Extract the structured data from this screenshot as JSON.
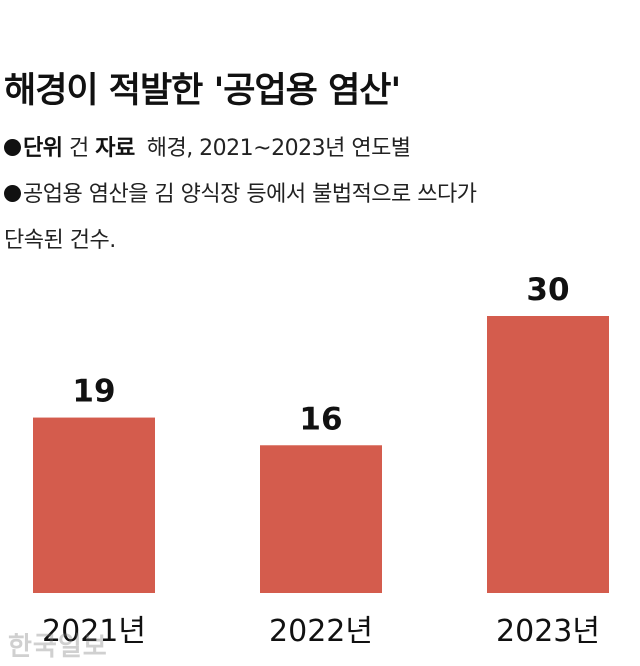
{
  "header": {
    "title": "해경이 적발한 '공업용 염산'",
    "unit_label": "단위",
    "unit_value": "건",
    "source_label": "자료",
    "source_value": "해경, 2021~2023년 연도별",
    "description_line1": "공업용 염산을 김 양식장 등에서 불법적으로 쓰다가",
    "description_line2": "단속된 건수."
  },
  "watermark": "한국일보",
  "colors": {
    "bar": "#d45c4d",
    "text": "#111111"
  },
  "chart_data": {
    "type": "bar",
    "title": "해경이 적발한 '공업용 염산'",
    "xlabel": "",
    "ylabel": "",
    "categories": [
      "2021년",
      "2022년",
      "2023년"
    ],
    "values": [
      19,
      16,
      30
    ],
    "data_labels": [
      "19",
      "16",
      "30"
    ],
    "ylim": [
      0,
      30
    ],
    "grid": false,
    "legend": "none"
  }
}
